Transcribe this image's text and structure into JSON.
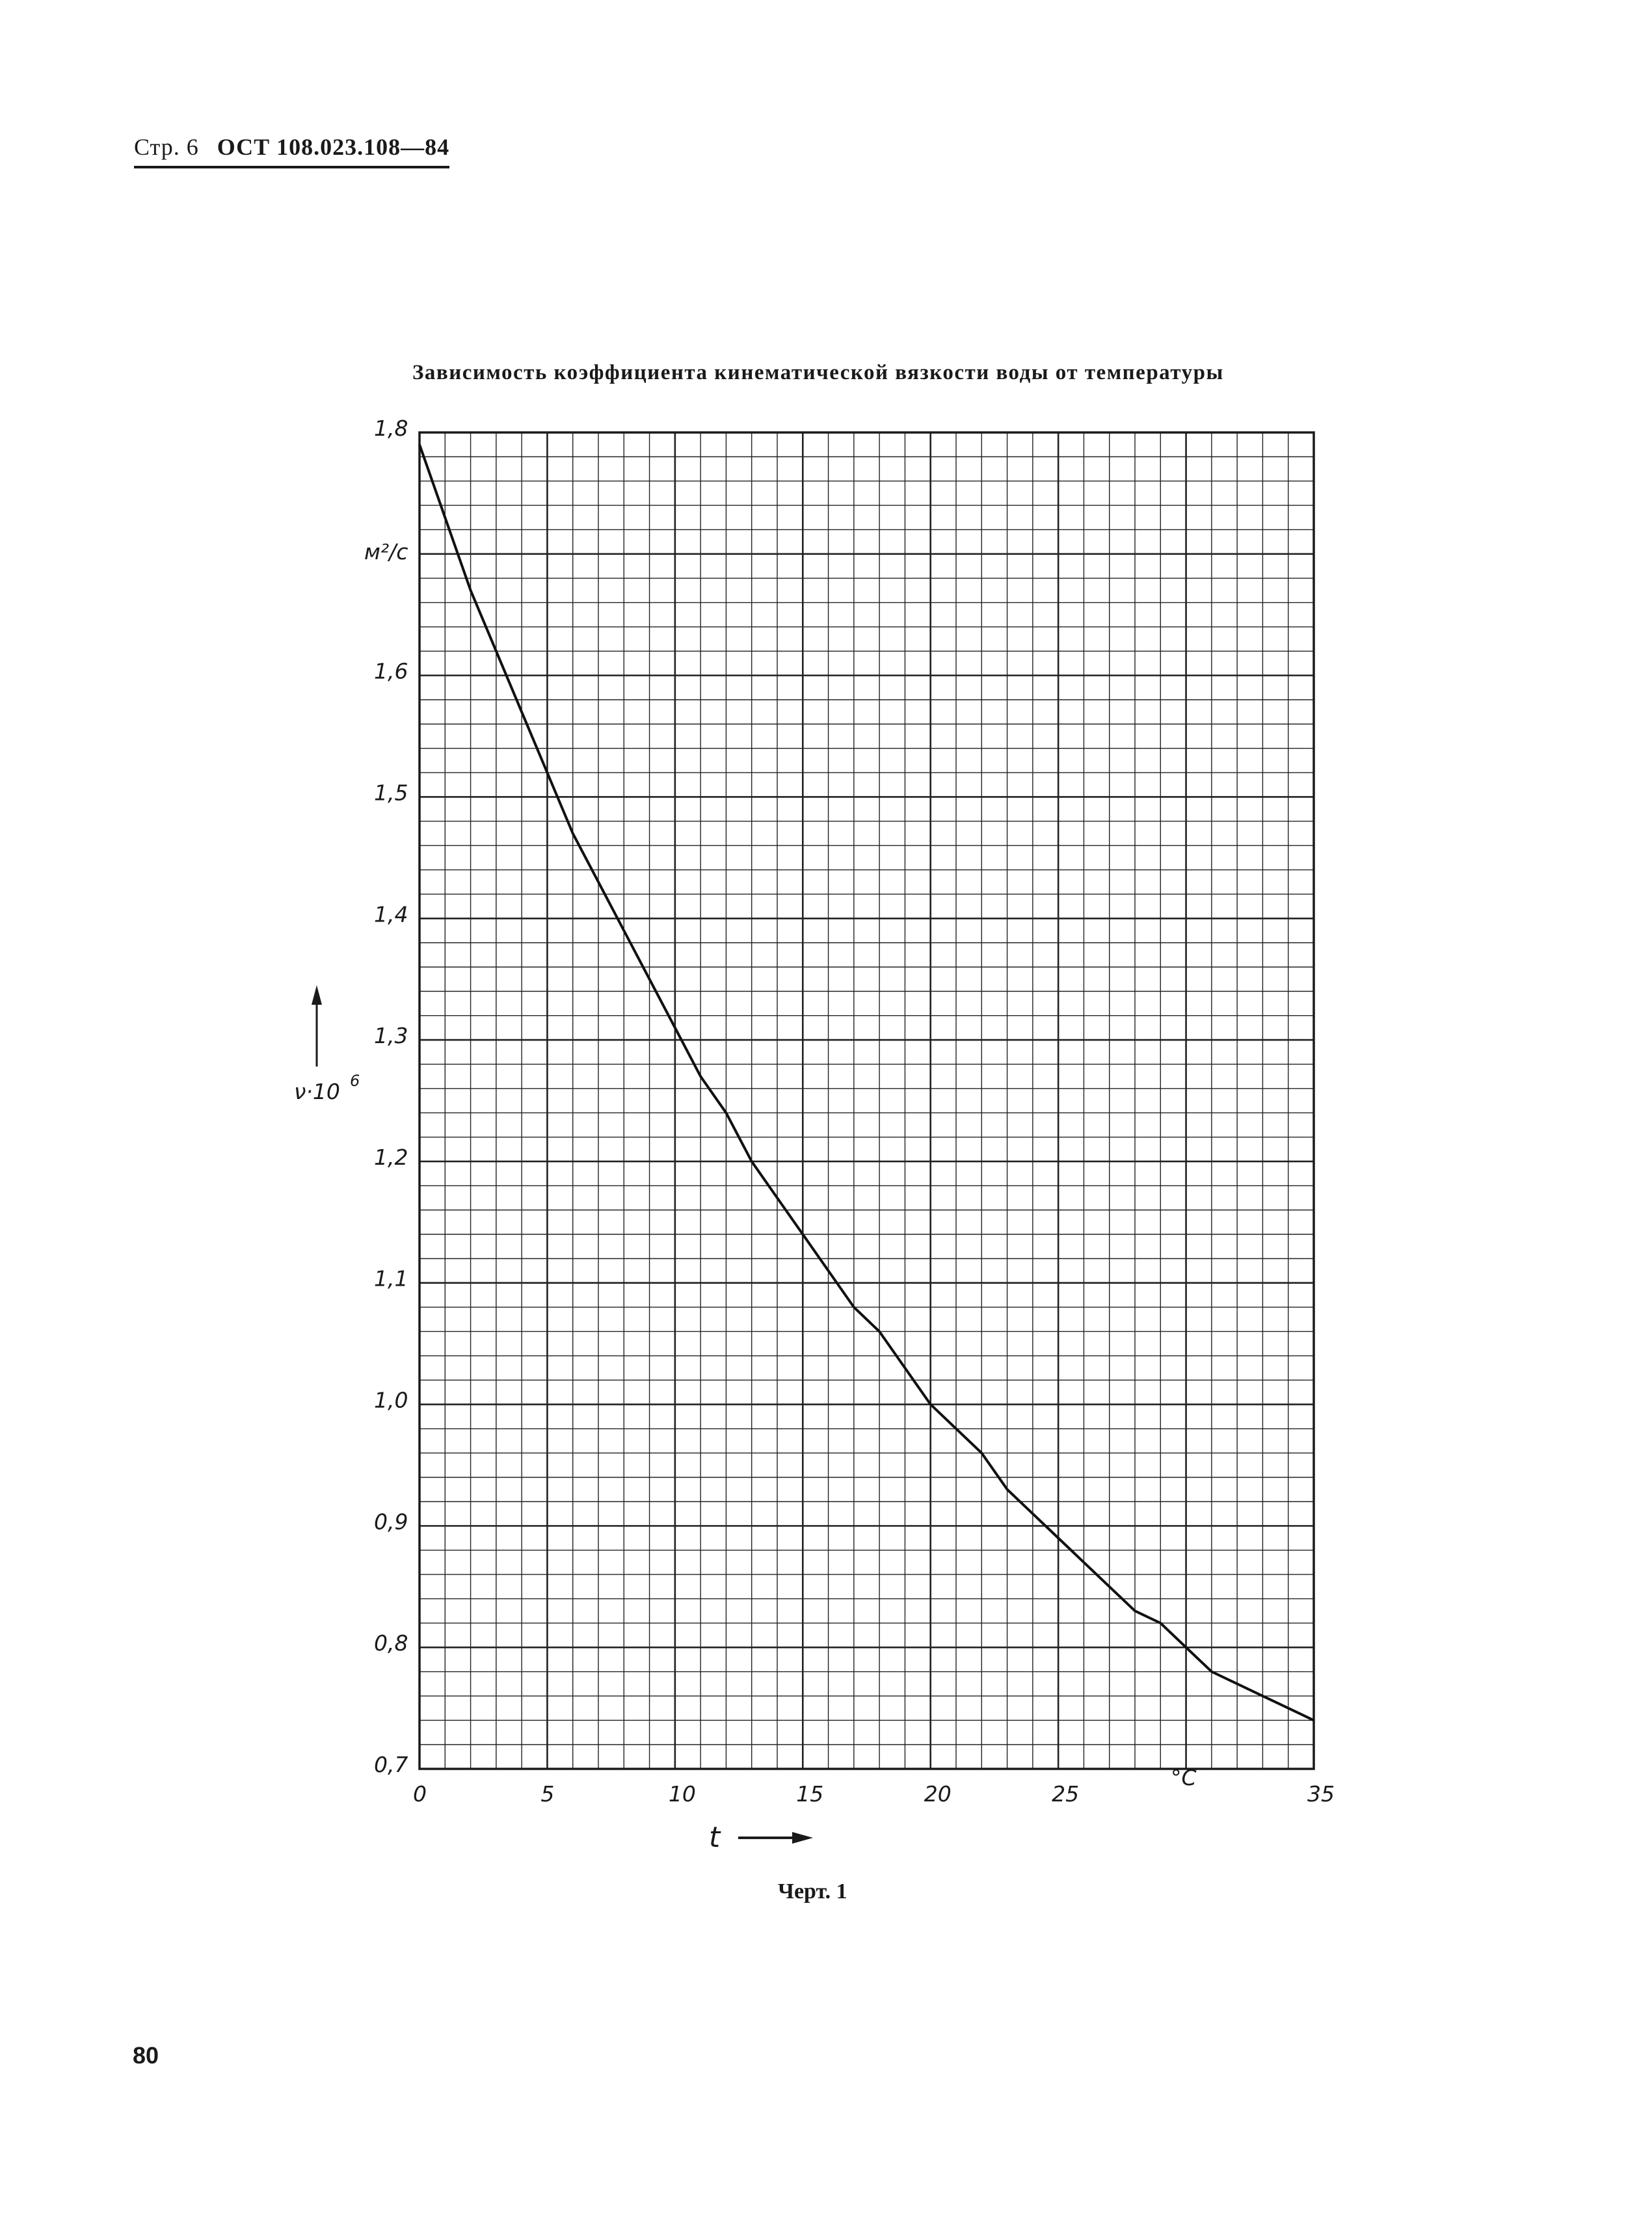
{
  "header": {
    "page": "Стр. 6",
    "standard": "ОСТ 108.023.108—84"
  },
  "page_number": "80",
  "chart_caption": "Черт. 1",
  "chart_data": {
    "type": "line",
    "title": "Зависимость коэффициента кинематической вязкости воды от температуры",
    "xlabel": "t",
    "x_unit": "°С",
    "ylabel": "ν·10⁶",
    "ylabel_sup": "6",
    "y_unit": "м²/с",
    "xlim": [
      0,
      35
    ],
    "ylim": [
      0.7,
      1.8
    ],
    "x_ticks": [
      "0",
      "5",
      "10",
      "15",
      "20",
      "25",
      "35"
    ],
    "y_ticks": [
      "0,7",
      "0,8",
      "0,9",
      "1,0",
      "1,1",
      "1,2",
      "1,3",
      "1,4",
      "1,5",
      "1,6",
      "1,8"
    ],
    "grid": true,
    "series": [
      {
        "x": [
          0,
          1,
          2,
          3,
          4,
          5,
          6,
          7,
          8,
          9,
          10,
          11,
          12,
          13,
          14,
          15,
          16,
          17,
          18,
          19,
          20,
          21,
          22,
          23,
          24,
          25,
          26,
          27,
          28,
          29,
          30,
          31,
          32,
          33,
          34,
          35
        ],
        "values": [
          1.79,
          1.73,
          1.67,
          1.62,
          1.57,
          1.52,
          1.47,
          1.43,
          1.39,
          1.35,
          1.31,
          1.27,
          1.24,
          1.2,
          1.17,
          1.14,
          1.11,
          1.08,
          1.06,
          1.03,
          1.0,
          0.98,
          0.96,
          0.93,
          0.91,
          0.89,
          0.87,
          0.85,
          0.83,
          0.82,
          0.8,
          0.78,
          0.77,
          0.76,
          0.75,
          0.74
        ]
      }
    ]
  }
}
